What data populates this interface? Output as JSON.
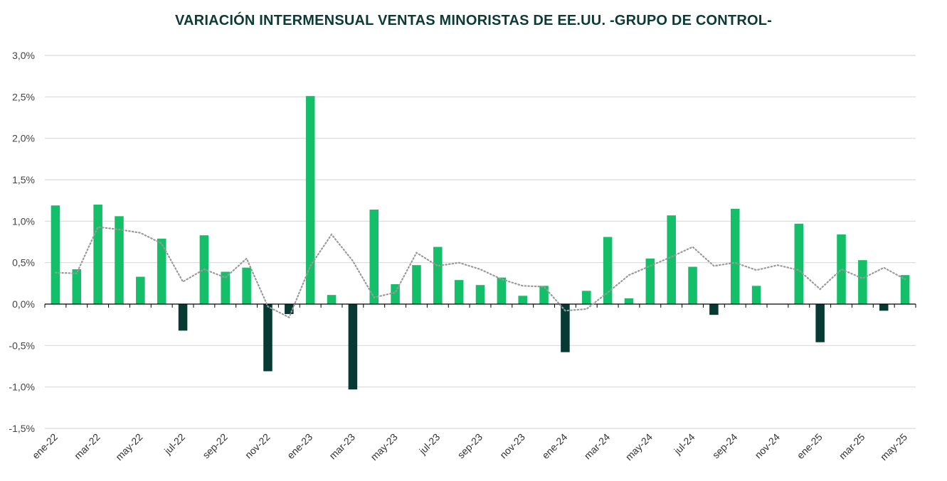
{
  "chart_data": {
    "type": "bar",
    "title": "VARIACIÓN INTERMENSUAL VENTAS MINORISTAS DE EE.UU. -GRUPO DE CONTROL-",
    "xlabel": "",
    "ylabel": "",
    "ylim": [
      -1.5,
      3.0
    ],
    "yticks": [
      3.0,
      2.5,
      2.0,
      1.5,
      1.0,
      0.5,
      0.0,
      -0.5,
      -1.0,
      -1.5
    ],
    "ytick_labels": [
      "3,0%",
      "2,5%",
      "2,0%",
      "1,5%",
      "1,0%",
      "0,5%",
      "0,0%",
      "-0,5%",
      "-1,0%",
      "-1,5%"
    ],
    "grid": true,
    "legend": "none",
    "categories": [
      "ene-22",
      "feb-22",
      "mar-22",
      "abr-22",
      "may-22",
      "jun-22",
      "jul-22",
      "ago-22",
      "sep-22",
      "oct-22",
      "nov-22",
      "dic-22",
      "ene-23",
      "feb-23",
      "mar-23",
      "abr-23",
      "may-23",
      "jun-23",
      "jul-23",
      "ago-23",
      "sep-23",
      "oct-23",
      "nov-23",
      "dic-23",
      "ene-24",
      "feb-24",
      "mar-24",
      "abr-24",
      "may-24",
      "jun-24",
      "jul-24",
      "ago-24",
      "sep-24",
      "oct-24",
      "nov-24",
      "dic-24",
      "ene-25",
      "feb-25",
      "mar-25",
      "abr-25",
      "may-25"
    ],
    "x_tick_labels": [
      "ene-22",
      "mar-22",
      "may-22",
      "jul-22",
      "sep-22",
      "nov-22",
      "ene-23",
      "mar-23",
      "may-23",
      "jul-23",
      "sep-23",
      "nov-23",
      "ene-24",
      "mar-24",
      "may-24",
      "jul-24",
      "sep-24",
      "nov-24",
      "ene-25",
      "mar-25",
      "may-25"
    ],
    "series": [
      {
        "kind": "bar",
        "values": [
          1.19,
          0.42,
          1.2,
          1.06,
          0.33,
          0.79,
          -0.32,
          0.83,
          0.39,
          0.44,
          -0.81,
          -0.12,
          2.51,
          0.11,
          -1.03,
          1.14,
          0.24,
          0.47,
          0.69,
          0.29,
          0.23,
          0.32,
          0.1,
          0.22,
          -0.58,
          0.16,
          0.81,
          0.07,
          0.55,
          1.07,
          0.45,
          -0.13,
          1.15,
          0.22,
          0.0,
          0.97,
          -0.46,
          0.84,
          0.53,
          -0.08,
          0.35
        ]
      },
      {
        "kind": "line",
        "style": "dotted",
        "values": [
          0.38,
          0.37,
          0.93,
          0.9,
          0.86,
          0.73,
          0.27,
          0.42,
          0.32,
          0.55,
          -0.03,
          -0.16,
          0.46,
          0.84,
          0.52,
          0.08,
          0.14,
          0.62,
          0.46,
          0.5,
          0.42,
          0.3,
          0.22,
          0.21,
          -0.08,
          -0.06,
          0.14,
          0.35,
          0.46,
          0.57,
          0.69,
          0.46,
          0.5,
          0.41,
          0.47,
          0.41,
          0.18,
          0.42,
          0.31,
          0.44,
          0.3
        ]
      }
    ],
    "colors": {
      "positive": "#13bf68",
      "negative": "#073a33",
      "trend_line": "#9a9a9a",
      "grid": "#d9d9d9",
      "zero_axis": "#000000",
      "title": "#0b3b34"
    }
  }
}
